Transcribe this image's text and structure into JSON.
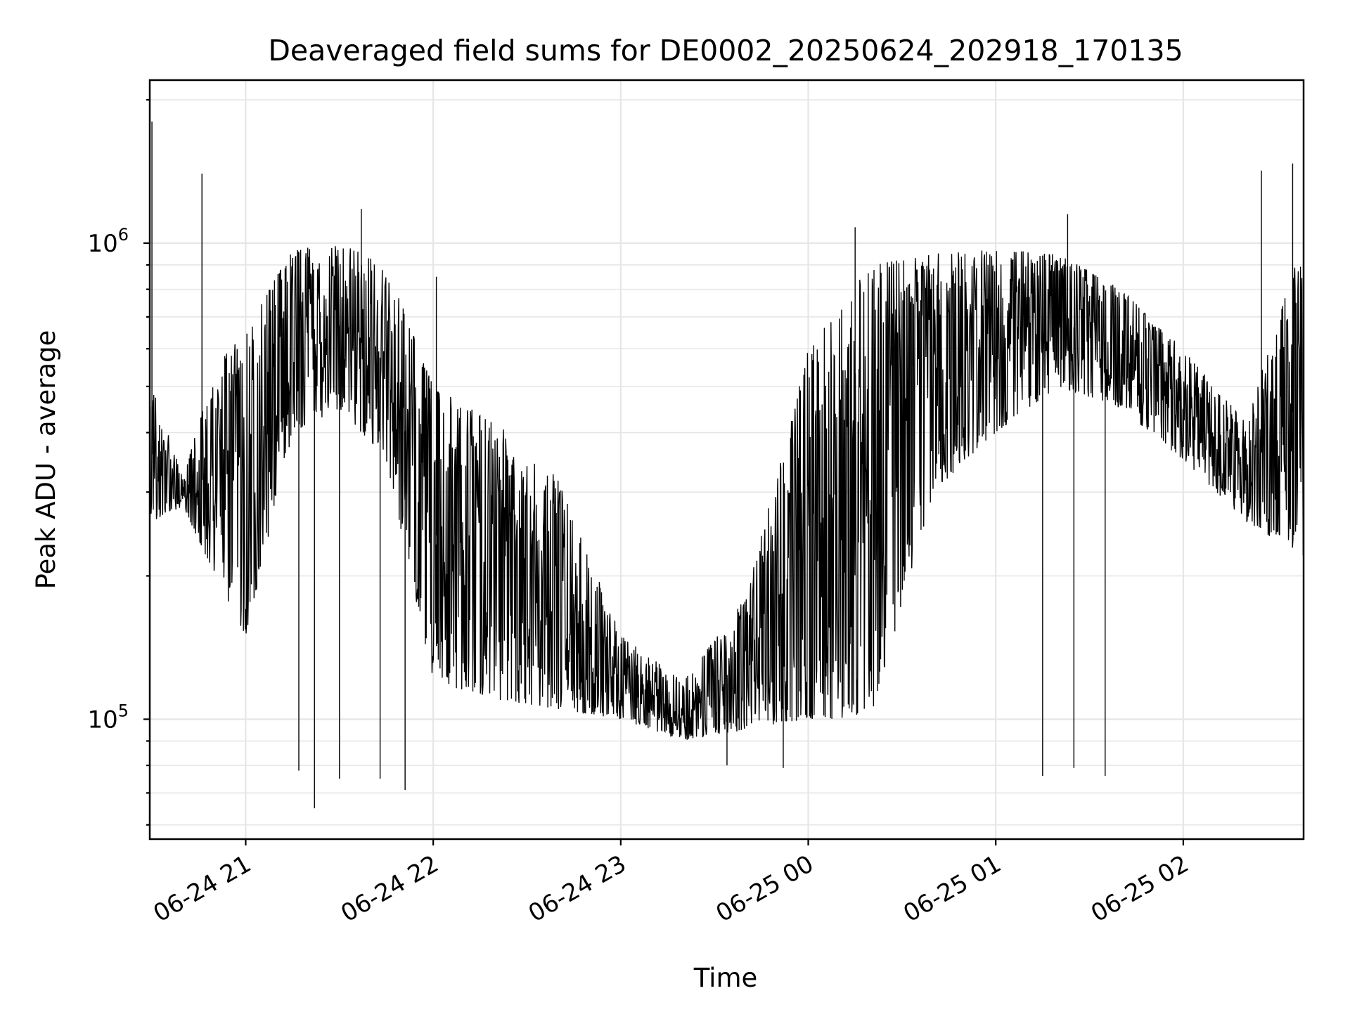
{
  "chart_data": {
    "type": "line",
    "title": "Deaveraged field sums for DE0002_20250624_202918_170135",
    "xlabel": "Time",
    "ylabel": "Peak ADU - average",
    "x_axis": {
      "kind": "datetime",
      "range": [
        "2025-06-24 20:29:18",
        "2025-06-25 02:38:30"
      ],
      "ticks": [
        {
          "value": "2025-06-24 21:00",
          "label": "06-24 21"
        },
        {
          "value": "2025-06-24 22:00",
          "label": "06-24 22"
        },
        {
          "value": "2025-06-24 23:00",
          "label": "06-24 23"
        },
        {
          "value": "2025-06-25 00:00",
          "label": "06-25 00"
        },
        {
          "value": "2025-06-25 01:00",
          "label": "06-25 01"
        },
        {
          "value": "2025-06-25 02:00",
          "label": "06-25 02"
        }
      ],
      "tick_label_rotation_deg": 30
    },
    "y_axis": {
      "scale": "log",
      "range": [
        56000,
        2200000
      ],
      "major_ticks": [
        {
          "value": 100000,
          "base": "10",
          "exp": "5"
        },
        {
          "value": 1000000,
          "base": "10",
          "exp": "6"
        }
      ],
      "minor_ticks": [
        60000,
        70000,
        80000,
        90000,
        200000,
        300000,
        400000,
        500000,
        600000,
        700000,
        800000,
        900000,
        2000000
      ]
    },
    "grid": true,
    "line_color": "#000000",
    "series": [
      {
        "style": "dense noisy line, one point per frame",
        "envelope": [
          {
            "t": "2025-06-24 20:30",
            "low": 260000,
            "high": 500000
          },
          {
            "t": "2025-06-24 20:40",
            "low": 280000,
            "high": 320000
          },
          {
            "t": "2025-06-24 20:50",
            "low": 200000,
            "high": 550000
          },
          {
            "t": "2025-06-24 21:00",
            "low": 150000,
            "high": 650000
          },
          {
            "t": "2025-06-24 21:15",
            "low": 400000,
            "high": 980000
          },
          {
            "t": "2025-06-24 21:30",
            "low": 450000,
            "high": 1000000
          },
          {
            "t": "2025-06-24 21:45",
            "low": 350000,
            "high": 900000
          },
          {
            "t": "2025-06-24 22:00",
            "low": 120000,
            "high": 500000
          },
          {
            "t": "2025-06-24 22:20",
            "low": 110000,
            "high": 420000
          },
          {
            "t": "2025-06-24 22:40",
            "low": 105000,
            "high": 320000
          },
          {
            "t": "2025-06-24 23:00",
            "low": 100000,
            "high": 150000
          },
          {
            "t": "2025-06-24 23:20",
            "low": 90000,
            "high": 120000
          },
          {
            "t": "2025-06-24 23:40",
            "low": 95000,
            "high": 180000
          },
          {
            "t": "2025-06-25 00:00",
            "low": 100000,
            "high": 600000
          },
          {
            "t": "2025-06-25 00:20",
            "low": 100000,
            "high": 900000
          },
          {
            "t": "2025-06-25 00:40",
            "low": 300000,
            "high": 950000
          },
          {
            "t": "2025-06-25 01:00",
            "low": 400000,
            "high": 970000
          },
          {
            "t": "2025-06-25 01:20",
            "low": 500000,
            "high": 950000
          },
          {
            "t": "2025-06-25 01:40",
            "low": 450000,
            "high": 800000
          },
          {
            "t": "2025-06-25 02:00",
            "low": 350000,
            "high": 600000
          },
          {
            "t": "2025-06-25 02:20",
            "low": 260000,
            "high": 420000
          },
          {
            "t": "2025-06-25 02:38",
            "low": 220000,
            "high": 1000000
          }
        ],
        "peaks": [
          {
            "t": "2025-06-24 20:30",
            "value": 1800000
          },
          {
            "t": "2025-06-24 20:46",
            "value": 1400000
          },
          {
            "t": "2025-06-24 21:37",
            "value": 1180000
          },
          {
            "t": "2025-06-24 22:01",
            "value": 850000
          },
          {
            "t": "2025-06-25 00:15",
            "value": 1080000
          },
          {
            "t": "2025-06-25 01:23",
            "value": 1150000
          },
          {
            "t": "2025-06-25 02:25",
            "value": 1420000
          },
          {
            "t": "2025-06-25 02:35",
            "value": 1470000
          }
        ],
        "dips": [
          {
            "t": "2025-06-24 21:17",
            "value": 78000
          },
          {
            "t": "2025-06-24 21:22",
            "value": 65000
          },
          {
            "t": "2025-06-24 21:30",
            "value": 75000
          },
          {
            "t": "2025-06-24 21:43",
            "value": 75000
          },
          {
            "t": "2025-06-24 21:51",
            "value": 71000
          },
          {
            "t": "2025-06-24 23:34",
            "value": 80000
          },
          {
            "t": "2025-06-24 23:52",
            "value": 79000
          },
          {
            "t": "2025-06-25 01:15",
            "value": 76000
          },
          {
            "t": "2025-06-25 01:25",
            "value": 79000
          },
          {
            "t": "2025-06-25 01:35",
            "value": 76000
          }
        ]
      }
    ]
  }
}
